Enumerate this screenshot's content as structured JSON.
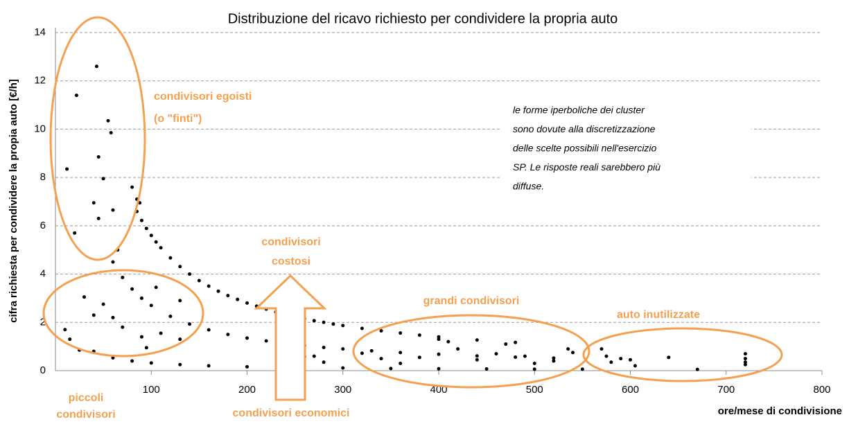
{
  "chart_data": {
    "type": "scatter",
    "title": "Distribuzione del ricavo richiesto per condividere la propria auto",
    "x_label": "ore/mese di condivisione",
    "y_label": "cifra richiesta per condividere la propia auto [€/h]",
    "xlim": [
      0,
      800
    ],
    "xticks": [
      100,
      200,
      300,
      400,
      500,
      600,
      700,
      800
    ],
    "ylim": [
      0,
      14
    ],
    "yticks": [
      0,
      2,
      4,
      6,
      8,
      10,
      12,
      14
    ],
    "grid": true,
    "color": "#000000",
    "x": [
      85,
      90,
      95,
      100,
      105,
      110,
      120,
      130,
      140,
      150,
      160,
      170,
      180,
      190,
      200,
      210,
      220,
      230,
      240,
      250,
      260,
      270,
      280,
      290,
      300,
      320,
      340,
      360,
      380,
      400,
      440,
      480,
      60,
      70,
      80,
      90,
      100,
      120,
      140,
      160,
      180,
      200,
      220,
      240,
      260,
      280,
      300,
      330,
      360,
      400,
      440,
      480,
      520,
      40,
      60,
      80,
      100,
      130,
      160,
      200,
      250,
      300,
      350,
      400,
      450,
      500,
      550,
      12,
      22,
      43,
      40,
      45,
      50,
      55,
      58,
      60,
      45,
      80,
      85,
      88,
      20,
      65,
      10,
      15,
      25,
      30,
      40,
      50,
      60,
      70,
      90,
      95,
      105,
      110,
      130,
      130,
      240,
      260,
      270,
      280,
      320,
      340,
      360,
      380,
      400,
      410,
      420,
      440,
      460,
      470,
      490,
      500,
      520,
      535,
      540,
      570,
      575,
      580,
      590,
      600,
      605,
      640,
      670,
      720,
      720,
      720,
      720
    ],
    "values": [
      6.59,
      6.22,
      5.89,
      5.6,
      5.33,
      5.09,
      4.67,
      4.31,
      4.0,
      3.73,
      3.5,
      3.29,
      3.11,
      2.95,
      2.8,
      2.67,
      2.55,
      2.43,
      2.33,
      2.24,
      2.15,
      2.07,
      2.0,
      1.93,
      1.87,
      1.75,
      1.65,
      1.56,
      1.47,
      1.4,
      1.27,
      1.17,
      4.5,
      3.86,
      3.38,
      3.0,
      2.7,
      2.25,
      1.93,
      1.69,
      1.5,
      1.35,
      1.23,
      1.13,
      1.04,
      0.96,
      0.9,
      0.82,
      0.75,
      0.68,
      0.61,
      0.56,
      0.52,
      0.8,
      0.53,
      0.4,
      0.32,
      0.25,
      0.2,
      0.16,
      0.13,
      0.11,
      0.09,
      0.08,
      0.07,
      0.06,
      0.06,
      8.35,
      11.4,
      12.6,
      6.95,
      6.3,
      7.95,
      10.35,
      9.85,
      6.65,
      8.85,
      7.6,
      7.1,
      6.95,
      5.7,
      5.0,
      1.7,
      1.3,
      0.85,
      3.05,
      2.3,
      2.75,
      2.2,
      1.8,
      1.4,
      0.95,
      3.45,
      1.55,
      1.3,
      2.9,
      0.7,
      0.58,
      0.6,
      0.35,
      0.72,
      0.5,
      0.3,
      0.55,
      1.3,
      1.2,
      0.9,
      0.45,
      0.7,
      1.1,
      0.6,
      0.3,
      0.4,
      0.9,
      0.75,
      0.9,
      0.6,
      0.35,
      0.5,
      0.45,
      0.2,
      0.55,
      0.05,
      0.7,
      0.5,
      0.35,
      0.25
    ],
    "annotations": [
      {
        "lines": [
          "condivisori egoisti",
          "(o \"finti\")"
        ]
      },
      {
        "lines": [
          "piccoli",
          "condivisori"
        ]
      },
      {
        "lines": [
          "condivisori",
          "costosi"
        ]
      },
      {
        "lines": [
          "condivisori economici"
        ]
      },
      {
        "lines": [
          "grandi condivisori"
        ]
      },
      {
        "lines": [
          "auto inutilizzate"
        ]
      },
      {
        "lines": [
          "le forme iperboliche dei cluster",
          "sono dovute  alla discretizzazione",
          "delle scelte possibili nell'esercizio",
          "SP. Le risposte reali sarebbero più",
          "diffuse."
        ]
      }
    ]
  }
}
